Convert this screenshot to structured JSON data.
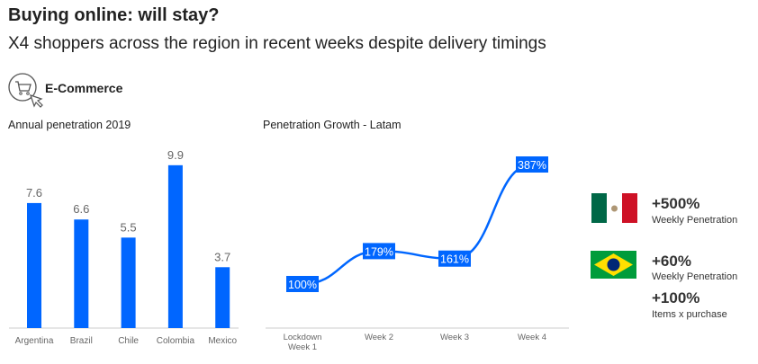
{
  "header": {
    "title": "Buying online: will stay?",
    "subtitle": "X4 shoppers across the region in recent weeks despite delivery timings"
  },
  "section": {
    "label": "E-Commerce",
    "icon": "cart-click-icon"
  },
  "colors": {
    "accent": "#0066ff",
    "axis": "#cccccc",
    "tick": "#666666"
  },
  "chart_data": [
    {
      "type": "bar",
      "title": "Annual penetration 2019",
      "categories": [
        "Argentina",
        "Brazil",
        "Chile",
        "Colombia",
        "Mexico"
      ],
      "values": [
        7.6,
        6.6,
        5.5,
        9.9,
        3.7
      ],
      "value_labels": [
        "7.6",
        "6.6",
        "5.5",
        "9.9",
        "3.7"
      ],
      "ylim": [
        0,
        10
      ],
      "grid": false
    },
    {
      "type": "line",
      "title": "Penetration Growth  - Latam",
      "categories": [
        "Lockdown Week 1",
        "Week 2",
        "Week 3",
        "Week 4"
      ],
      "category_lines": [
        [
          "Lockdown",
          "Week 1"
        ],
        [
          "Week 2"
        ],
        [
          "Week 3"
        ],
        [
          "Week 4"
        ]
      ],
      "values": [
        100,
        179,
        161,
        387
      ],
      "value_labels": [
        "100%",
        "179%",
        "161%",
        "387%"
      ],
      "ylim": [
        0,
        400
      ],
      "grid": false
    }
  ],
  "stats": [
    {
      "country": "Mexico",
      "flag": "mexico-flag-icon",
      "items": [
        {
          "value": "+500%",
          "label": "Weekly Penetration"
        }
      ]
    },
    {
      "country": "Brazil",
      "flag": "brazil-flag-icon",
      "items": [
        {
          "value": "+60%",
          "label": "Weekly Penetration"
        },
        {
          "value": "+100%",
          "label": "Items x purchase"
        }
      ]
    }
  ]
}
